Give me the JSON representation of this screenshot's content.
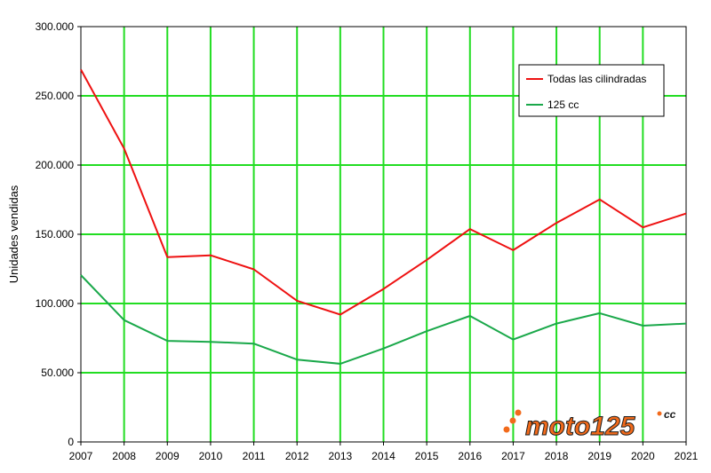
{
  "chart_data": {
    "type": "line",
    "ylabel": "Unidades vendidas",
    "xlabel": "",
    "x": [
      "2007",
      "2008",
      "2009",
      "2010",
      "2011",
      "2012",
      "2013",
      "2014",
      "2015",
      "2016",
      "2017",
      "2018",
      "2019",
      "2020",
      "2021"
    ],
    "ylim": [
      0,
      300000
    ],
    "yticks": [
      0,
      50000,
      100000,
      150000,
      200000,
      250000,
      300000
    ],
    "ytick_labels": [
      "0",
      "50.000",
      "100.000",
      "150.000",
      "200.000",
      "250.000",
      "300.000"
    ],
    "grid": true,
    "grid_color": "#22dd22",
    "legend_position": "top-right",
    "series": [
      {
        "name": "Todas las cilindradas",
        "color": "#ee1111",
        "values": [
          269000,
          212000,
          133500,
          134800,
          124700,
          102000,
          92000,
          110500,
          131500,
          153800,
          138500,
          158200,
          175200,
          155000,
          165000
        ]
      },
      {
        "name": "125 cc",
        "color": "#1aa84a",
        "values": [
          120500,
          88000,
          73000,
          72300,
          71000,
          59500,
          56500,
          67500,
          80000,
          91000,
          74000,
          85500,
          93000,
          84000,
          85500
        ]
      }
    ]
  },
  "logo": {
    "text": "moto125",
    "superscript": "cc",
    "color": "#f26a1b"
  }
}
